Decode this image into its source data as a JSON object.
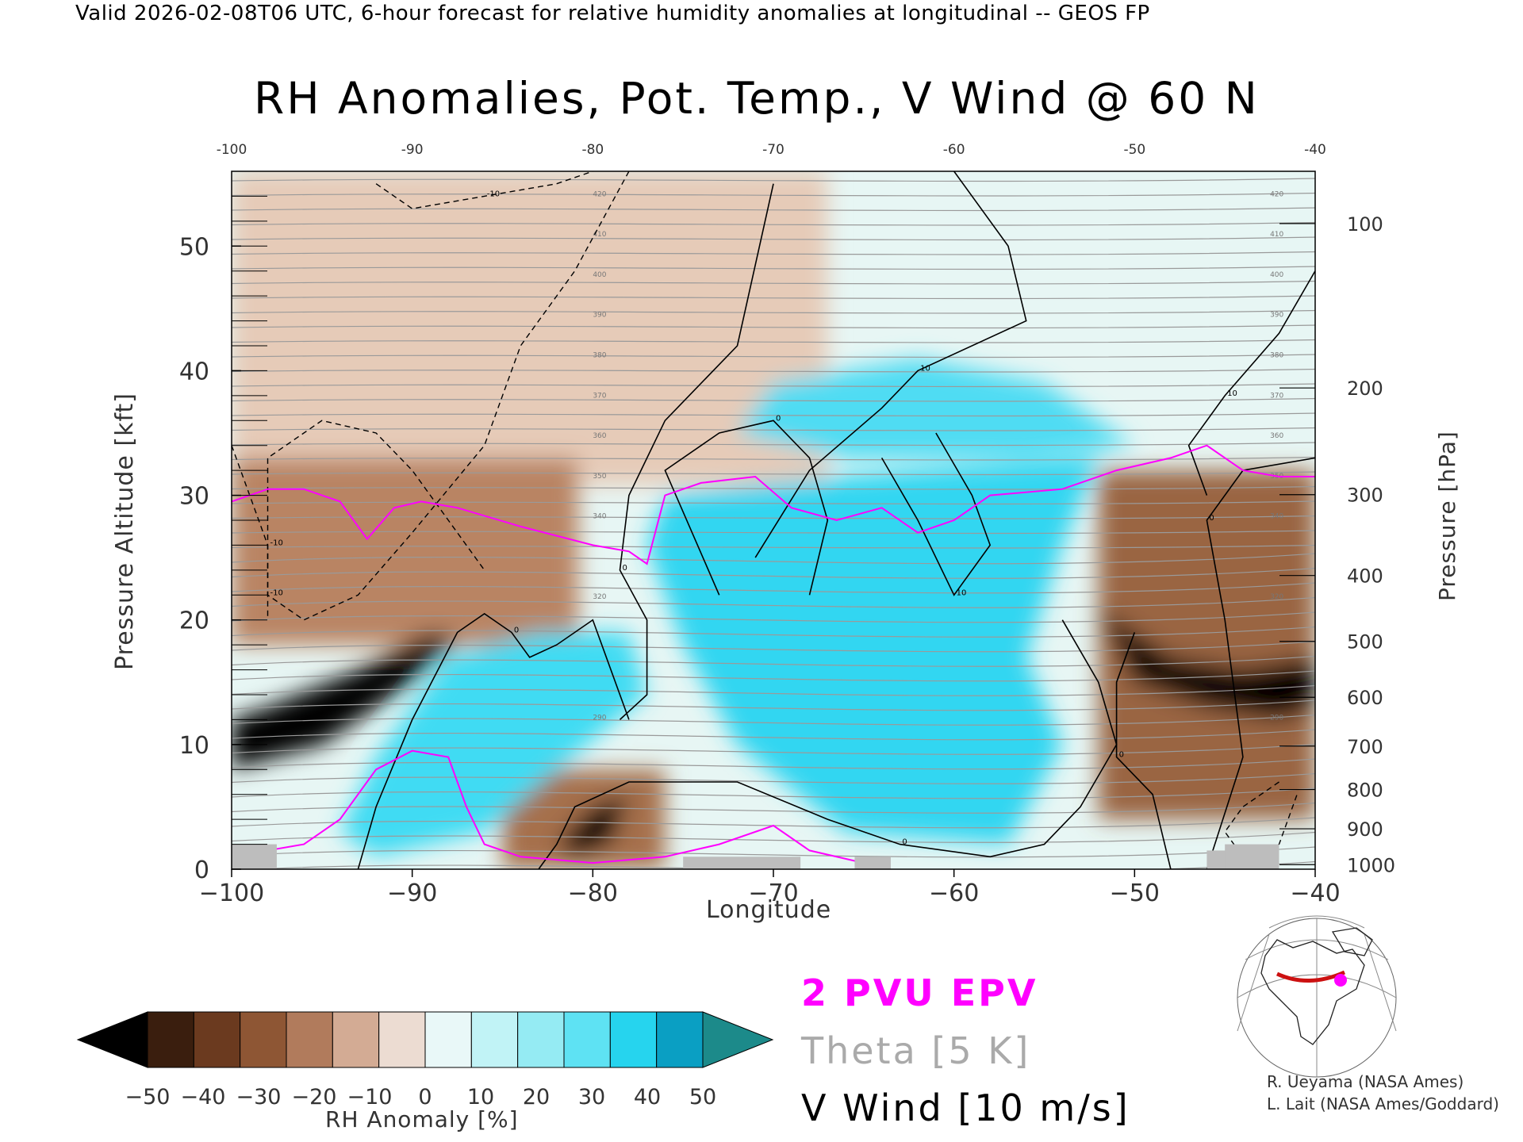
{
  "header": "Valid 2026-02-08T06 UTC, 6-hour forecast for relative humidity anomalies at longitudinal -- GEOS FP",
  "credits": [
    "R. Ueyama (NASA Ames)",
    "L. Lait (NASA Ames/Goddard)"
  ],
  "legend": {
    "pvu": "2 PVU EPV",
    "theta": "Theta [5 K]",
    "wind": "V Wind [10 m/s]"
  },
  "colors": {
    "pvu": "#ff00ff",
    "theta": "#aaaaaa",
    "wind": "#000000",
    "terrain": "#bdbdbd"
  },
  "chart_data": {
    "type": "heatmap",
    "title": "RH Anomalies, Pot. Temp., V Wind @ 60 N",
    "xlabel": "Longitude",
    "ylabel": "Pressure Altitude [kft]",
    "ylabel_right": "Pressure [hPa]",
    "xlim": [
      -100,
      -40
    ],
    "ylim": [
      0,
      56
    ],
    "x_ticks": [
      -100,
      -90,
      -80,
      -70,
      -60,
      -50,
      -40
    ],
    "y_ticks": [
      0,
      10,
      20,
      30,
      40,
      50
    ],
    "pressure_ticks": [
      100,
      200,
      300,
      400,
      500,
      600,
      700,
      800,
      900,
      1000
    ],
    "theta_labels": [
      290,
      320,
      340,
      350,
      360,
      370,
      380,
      390,
      400,
      410,
      420
    ],
    "wind_labels": [
      "-10",
      "0",
      "10"
    ],
    "colorbar": {
      "label": "RH Anomaly [%]",
      "ticks": [
        -50,
        -40,
        -30,
        -20,
        -10,
        0,
        10,
        20,
        30,
        40,
        50
      ],
      "colors": [
        "#000000",
        "#3a1e0e",
        "#6b3a1f",
        "#8e5634",
        "#b17b5c",
        "#d3ab94",
        "#ecdcd2",
        "#e9f8f8",
        "#c1f3f6",
        "#95ebf3",
        "#5ee2f3",
        "#26d4ee",
        "#0a9fc3",
        "#1c8a8a"
      ]
    },
    "regions": [
      {
        "type": "dry",
        "color": "#000000",
        "points": [
          [
            -100,
            10
          ],
          [
            -94,
            12
          ],
          [
            -89,
            17.5
          ],
          [
            -87.5,
            18
          ],
          [
            -91,
            15
          ],
          [
            -96,
            12
          ],
          [
            -100,
            9
          ]
        ]
      },
      {
        "type": "dry",
        "color": "#000000",
        "points": [
          [
            -100,
            8
          ],
          [
            -95,
            10
          ],
          [
            -90,
            15
          ],
          [
            -87.5,
            18.5
          ],
          [
            -89,
            19
          ],
          [
            -93,
            16
          ],
          [
            -98,
            13
          ],
          [
            -100,
            12
          ]
        ]
      },
      {
        "type": "dry",
        "color": "#000000",
        "points": [
          [
            -82,
            2
          ],
          [
            -80,
            5
          ],
          [
            -78,
            6
          ],
          [
            -79,
            2
          ],
          [
            -81,
            1
          ]
        ]
      },
      {
        "type": "dry",
        "color": "#000000",
        "points": [
          [
            -52,
            21
          ],
          [
            -50,
            15
          ],
          [
            -46,
            13
          ],
          [
            -42,
            12
          ],
          [
            -40,
            13
          ],
          [
            -40,
            17
          ],
          [
            -44,
            16
          ],
          [
            -48,
            17
          ],
          [
            -50,
            19
          ]
        ]
      },
      {
        "type": "moist",
        "color": "#40dbf3",
        "points": [
          [
            -88,
            17
          ],
          [
            -83,
            19
          ],
          [
            -78,
            19
          ],
          [
            -77,
            14
          ],
          [
            -82,
            8
          ],
          [
            -86,
            3
          ],
          [
            -92,
            1
          ],
          [
            -94,
            3
          ],
          [
            -92,
            9
          ]
        ]
      },
      {
        "type": "moist",
        "color": "#30d6f1",
        "points": [
          [
            -76,
            30
          ],
          [
            -70,
            31
          ],
          [
            -62,
            32
          ],
          [
            -52,
            33
          ],
          [
            -54,
            26
          ],
          [
            -56,
            17
          ],
          [
            -54,
            10
          ],
          [
            -57,
            2
          ],
          [
            -66,
            3
          ],
          [
            -72,
            10
          ],
          [
            -75,
            18
          ],
          [
            -77,
            26
          ]
        ]
      },
      {
        "type": "moist",
        "color": "#50dcf3",
        "points": [
          [
            -70,
            39
          ],
          [
            -62,
            41
          ],
          [
            -55,
            39
          ],
          [
            -50,
            34
          ],
          [
            -56,
            33
          ],
          [
            -66,
            33
          ],
          [
            -72,
            35
          ]
        ]
      }
    ],
    "series": [
      {
        "name": "2 PVU EPV",
        "values": [
          [
            -100,
            29.5
          ],
          [
            -98,
            30.5
          ],
          [
            -96,
            30.5
          ],
          [
            -94,
            29.5
          ],
          [
            -92.5,
            26.5
          ],
          [
            -91,
            29
          ],
          [
            -89.5,
            29.5
          ],
          [
            -87.5,
            29
          ],
          [
            -84,
            27.5
          ],
          [
            -80,
            26
          ],
          [
            -78,
            25.5
          ],
          [
            -77,
            24.5
          ],
          [
            -76,
            30
          ],
          [
            -74,
            31
          ],
          [
            -71,
            31.5
          ],
          [
            -69,
            29
          ],
          [
            -66.5,
            28
          ],
          [
            -64,
            29
          ],
          [
            -62,
            27
          ],
          [
            -60,
            28
          ],
          [
            -58,
            30
          ],
          [
            -54,
            30.5
          ],
          [
            -51,
            32
          ],
          [
            -48,
            33
          ],
          [
            -46,
            34
          ],
          [
            -45,
            33
          ],
          [
            -44,
            32
          ],
          [
            -42,
            31.5
          ],
          [
            -40,
            31.5
          ]
        ]
      },
      {
        "name": "2 PVU EPV",
        "values": [
          [
            -100,
            1
          ],
          [
            -96,
            2
          ],
          [
            -94,
            4
          ],
          [
            -92,
            8
          ],
          [
            -90,
            9.5
          ],
          [
            -88,
            9
          ],
          [
            -87,
            5
          ],
          [
            -86,
            2
          ],
          [
            -84,
            1
          ],
          [
            -80,
            0.5
          ],
          [
            -76,
            1
          ],
          [
            -73,
            2
          ],
          [
            -70,
            3.5
          ],
          [
            -68,
            1.5
          ],
          [
            -65,
            0.5
          ]
        ]
      }
    ],
    "wind_contours": [
      {
        "label": "0",
        "values": [
          [
            -93,
            0
          ],
          [
            -92,
            5
          ],
          [
            -90,
            12
          ],
          [
            -87.5,
            19
          ],
          [
            -86,
            20.5
          ],
          [
            -84.5,
            19
          ],
          [
            -83.5,
            17
          ],
          [
            -82,
            18
          ],
          [
            -80,
            20
          ],
          [
            -78.5,
            14
          ],
          [
            -78,
            12
          ]
        ]
      },
      {
        "label": "0",
        "values": [
          [
            -70,
            55
          ],
          [
            -72,
            42
          ],
          [
            -76,
            36
          ],
          [
            -78,
            30
          ],
          [
            -78.5,
            24
          ],
          [
            -77,
            20
          ],
          [
            -77,
            14
          ],
          [
            -78.5,
            12
          ]
        ]
      },
      {
        "label": "0",
        "values": [
          [
            -73,
            22
          ],
          [
            -76,
            32
          ],
          [
            -73,
            35
          ],
          [
            -70,
            36
          ],
          [
            -68,
            33
          ],
          [
            -67,
            28
          ],
          [
            -68,
            22
          ]
        ]
      },
      {
        "label": "10",
        "values": [
          [
            -71,
            25
          ],
          [
            -68,
            32
          ],
          [
            -64,
            37
          ],
          [
            -62,
            40
          ],
          [
            -56,
            44
          ],
          [
            -57,
            50
          ],
          [
            -60,
            56
          ]
        ]
      },
      {
        "label": "10",
        "values": [
          [
            -61,
            35
          ],
          [
            -59,
            30
          ],
          [
            -58,
            26
          ],
          [
            -60,
            22
          ],
          [
            -62,
            28
          ],
          [
            -64,
            33
          ]
        ]
      },
      {
        "label": "0",
        "values": [
          [
            -54,
            20
          ],
          [
            -52,
            15
          ],
          [
            -51,
            10
          ],
          [
            -53,
            5
          ],
          [
            -55,
            2
          ],
          [
            -58,
            1
          ],
          [
            -63,
            2
          ],
          [
            -67,
            4
          ],
          [
            -72,
            7
          ],
          [
            -78,
            7
          ],
          [
            -81,
            5
          ],
          [
            -82,
            2
          ],
          [
            -83,
            0
          ]
        ]
      },
      {
        "label": "0",
        "values": [
          [
            -46,
            0
          ],
          [
            -44,
            9
          ],
          [
            -45,
            20
          ],
          [
            -46,
            28
          ],
          [
            -44,
            32
          ],
          [
            -40,
            33
          ]
        ]
      },
      {
        "label": "0",
        "values": [
          [
            -48,
            0
          ],
          [
            -49,
            6
          ],
          [
            -51,
            9
          ],
          [
            -51,
            15
          ],
          [
            -50,
            19
          ]
        ]
      },
      {
        "label": "10",
        "values": [
          [
            -40,
            48
          ],
          [
            -42,
            43
          ],
          [
            -45,
            38
          ],
          [
            -47,
            34
          ],
          [
            -46,
            30
          ]
        ]
      }
    ],
    "wind_dashed": [
      {
        "label": "-10",
        "values": [
          [
            -78,
            56
          ],
          [
            -81,
            48
          ],
          [
            -84,
            42
          ],
          [
            -86,
            34
          ],
          [
            -90,
            27
          ],
          [
            -93,
            22
          ],
          [
            -96,
            20
          ],
          [
            -98,
            22
          ],
          [
            -98,
            33
          ],
          [
            -95,
            36
          ],
          [
            -92,
            35
          ],
          [
            -90,
            32
          ],
          [
            -88,
            28
          ],
          [
            -86,
            24
          ]
        ]
      },
      {
        "label": "-10",
        "values": [
          [
            -92,
            55
          ],
          [
            -90,
            53
          ],
          [
            -86,
            54
          ],
          [
            -82,
            55
          ],
          [
            -80,
            56
          ]
        ]
      },
      {
        "label": "-10",
        "values": [
          [
            -100,
            34
          ],
          [
            -99,
            30
          ],
          [
            -98,
            26
          ],
          [
            -98,
            20
          ]
        ]
      },
      {
        "label": "-10",
        "values": [
          [
            -42,
            7
          ],
          [
            -44,
            5
          ],
          [
            -45,
            3
          ],
          [
            -44,
            1
          ],
          [
            -42,
            2
          ],
          [
            -41,
            6
          ]
        ]
      }
    ]
  }
}
